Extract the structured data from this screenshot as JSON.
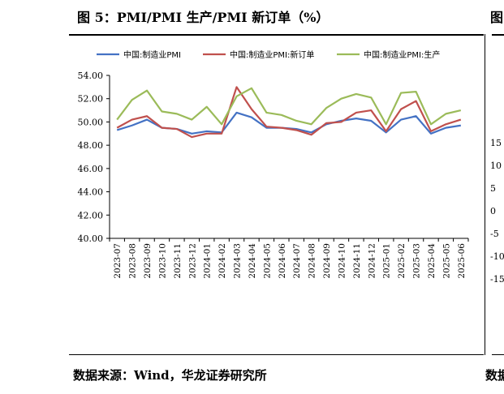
{
  "figure": {
    "title": "图 5：PMI/PMI 生产/PMI 新订单（%）",
    "right_title_fragment": "图",
    "source": "数据来源：Wind，华龙证券研究所",
    "right_source_fragment": "数据",
    "right_panel_ticks": [
      "15",
      "10",
      "5",
      "0",
      "-5",
      "-10",
      "-15"
    ]
  },
  "chart_data": {
    "type": "line",
    "title": "",
    "xlabel": "",
    "ylabel": "",
    "ylim": [
      40,
      54
    ],
    "yticks": [
      "40.00",
      "42.00",
      "44.00",
      "46.00",
      "48.00",
      "50.00",
      "52.00",
      "54.00"
    ],
    "grid": false,
    "legend_position": "top",
    "x": [
      "2023-07",
      "2023-08",
      "2023-09",
      "2023-10",
      "2023-11",
      "2023-12",
      "2024-01",
      "2024-02",
      "2024-03",
      "2024-04",
      "2024-05",
      "2024-06",
      "2024-07",
      "2024-08",
      "2024-09",
      "2024-10",
      "2024-11",
      "2024-12",
      "2025-01",
      "2025-02",
      "2025-03",
      "2025-04",
      "2025-05",
      "2025-06"
    ],
    "series": [
      {
        "name": "中国:制造业PMI",
        "color": "#4472C4",
        "values": [
          49.3,
          49.7,
          50.2,
          49.5,
          49.4,
          49.0,
          49.2,
          49.1,
          50.8,
          50.4,
          49.5,
          49.5,
          49.4,
          49.1,
          49.8,
          50.1,
          50.3,
          50.1,
          49.1,
          50.2,
          50.5,
          49.0,
          49.5,
          49.7
        ]
      },
      {
        "name": "中国:制造业PMI:新订单",
        "color": "#C0504D",
        "values": [
          49.5,
          50.2,
          50.5,
          49.5,
          49.4,
          48.7,
          49.0,
          49.0,
          53.0,
          51.1,
          49.6,
          49.5,
          49.3,
          48.9,
          49.9,
          50.0,
          50.8,
          51.0,
          49.2,
          51.1,
          51.8,
          49.2,
          49.8,
          50.2
        ]
      },
      {
        "name": "中国:制造业PMI:生产",
        "color": "#9BBB59",
        "values": [
          50.2,
          51.9,
          52.7,
          50.9,
          50.7,
          50.2,
          51.3,
          49.8,
          52.2,
          52.9,
          50.8,
          50.6,
          50.1,
          49.8,
          51.2,
          52.0,
          52.4,
          52.1,
          49.8,
          52.5,
          52.6,
          49.8,
          50.7,
          51.0
        ]
      }
    ]
  }
}
